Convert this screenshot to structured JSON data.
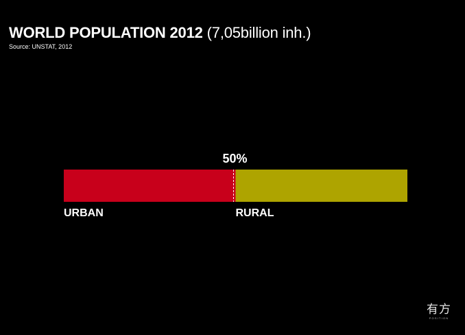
{
  "header": {
    "title_bold": "WORLD POPULATION 2012",
    "title_rest": "(7,05billion inh.)",
    "source": "Source: UNSTAT, 2012"
  },
  "chart_data": {
    "type": "bar",
    "orientation": "horizontal-stacked",
    "categories": [
      "URBAN",
      "RURAL"
    ],
    "values": [
      50,
      50
    ],
    "unit": "%",
    "marker_label": "50%",
    "colors": {
      "URBAN": "#c8001b",
      "RURAL": "#aea400"
    },
    "divider": "dashed white line at the split",
    "grid": false,
    "legend": "none"
  },
  "logo": {
    "text_cn": "有方",
    "text_en": "POSITION"
  }
}
